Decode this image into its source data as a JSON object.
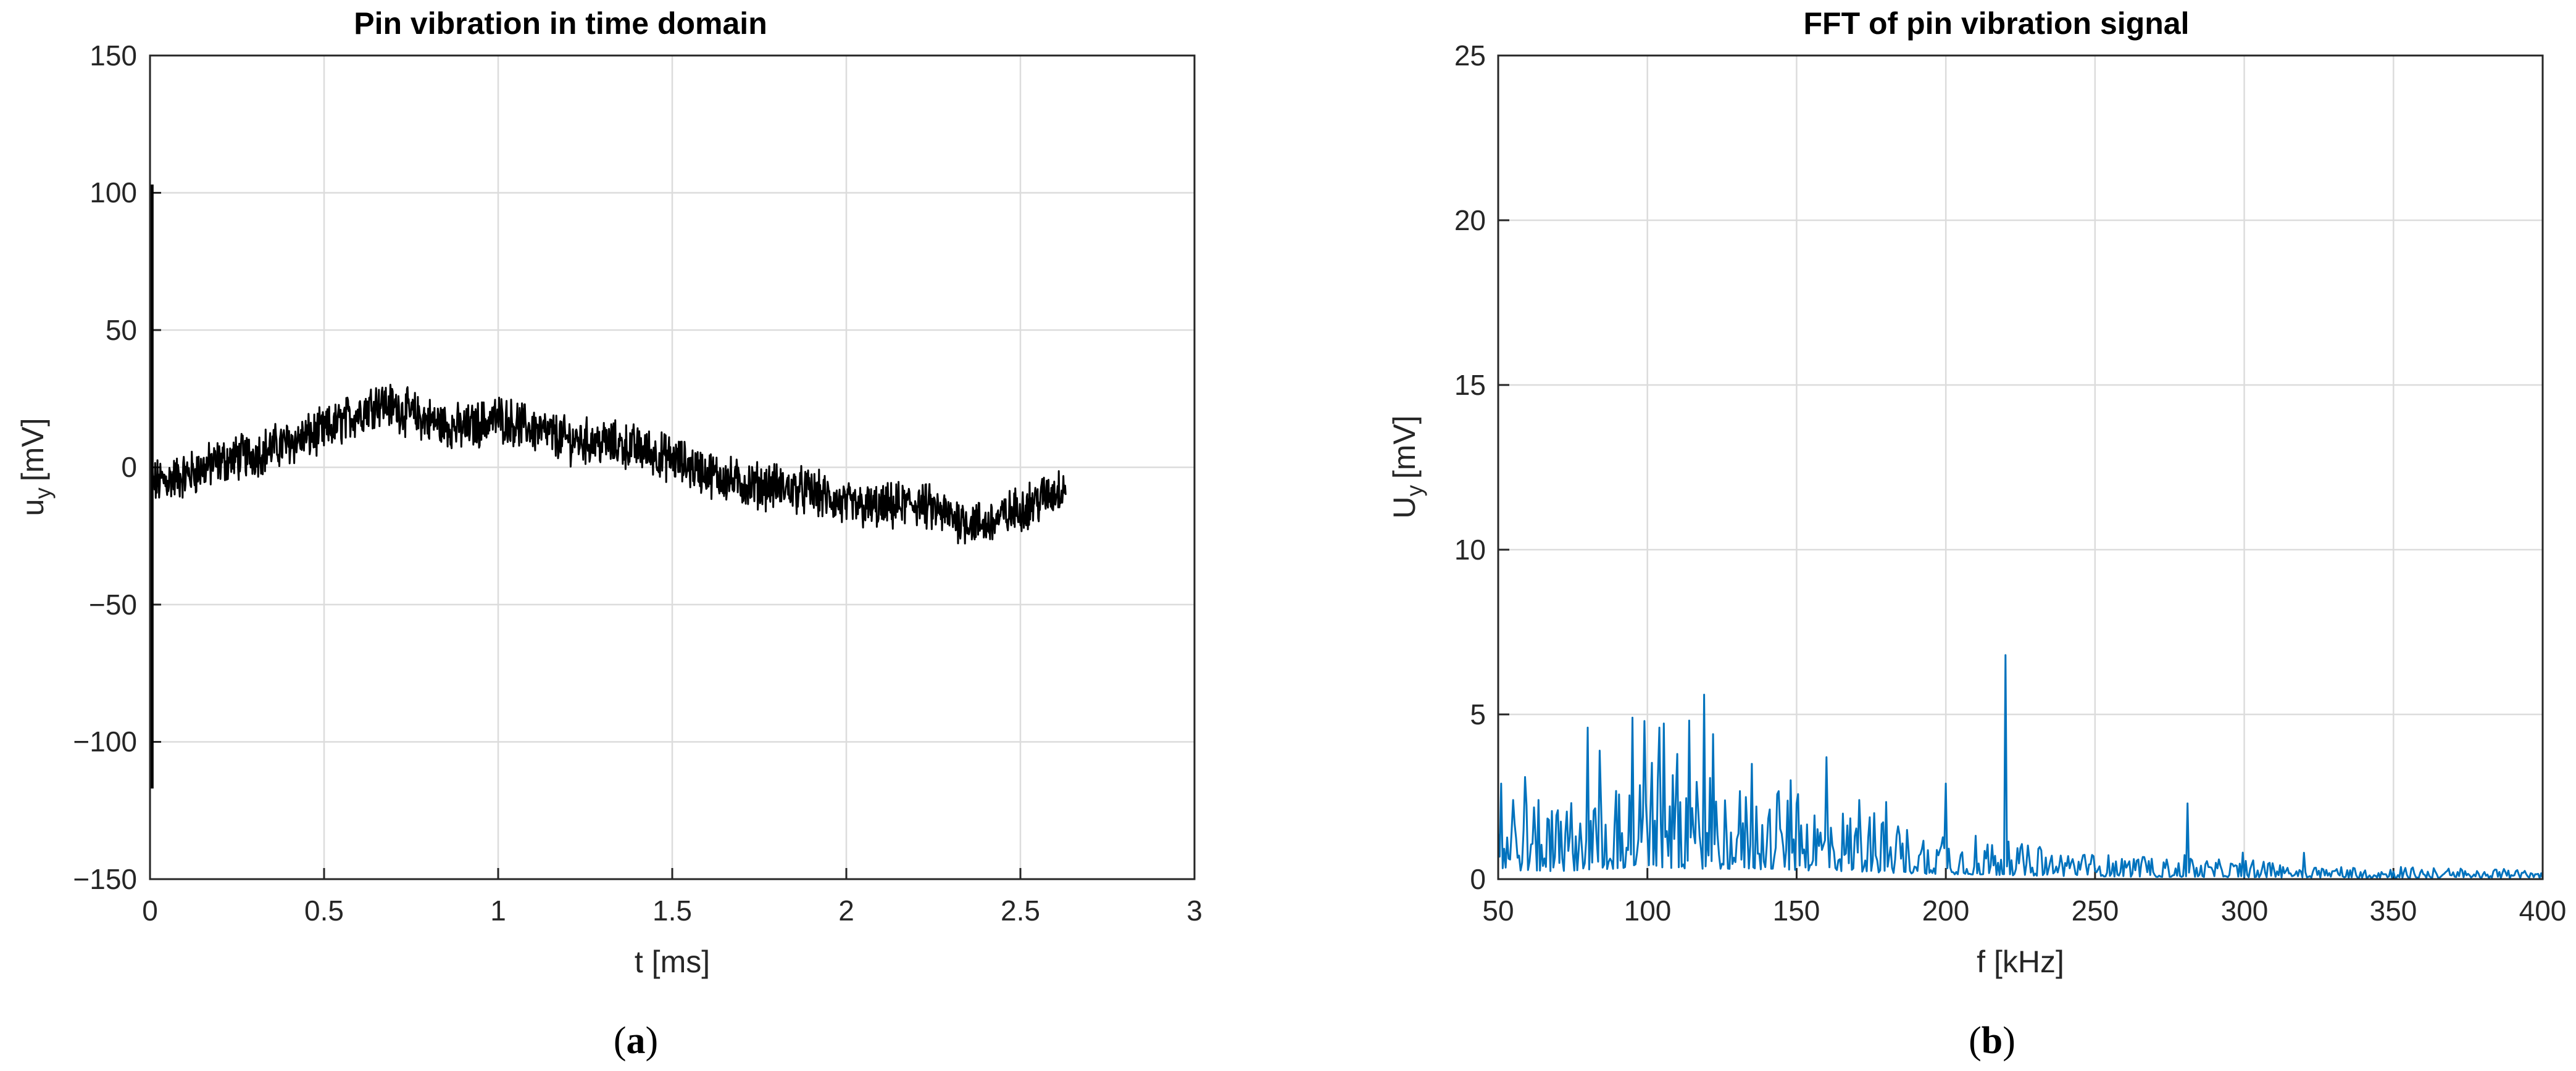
{
  "chart_data": [
    {
      "type": "line",
      "title": "Pin vibration in time domain",
      "xlabel": "t [ms]",
      "ylabel_main": "u",
      "ylabel_sub": "y",
      "ylabel_unit": "[mV]",
      "xlim": [
        0,
        3
      ],
      "ylim": [
        -150,
        150
      ],
      "xticks": [
        "0",
        "0.5",
        "1",
        "1.5",
        "2",
        "2.5",
        "3"
      ],
      "yticks": [
        "150",
        "100",
        "50",
        "0",
        "−50",
        "−100",
        "−150"
      ],
      "grid": true,
      "caption_letter": "a",
      "color": "#000000",
      "series": [
        {
          "trend": [
            [
              0,
              -6
            ],
            [
              0.1,
              -3
            ],
            [
              0.2,
              2
            ],
            [
              0.3,
              5
            ],
            [
              0.4,
              9
            ],
            [
              0.5,
              13
            ],
            [
              0.6,
              20
            ],
            [
              0.65,
              24
            ],
            [
              0.7,
              22
            ],
            [
              0.8,
              17
            ],
            [
              0.9,
              14
            ],
            [
              1.0,
              18
            ],
            [
              1.05,
              16
            ],
            [
              1.1,
              14
            ],
            [
              1.2,
              10
            ],
            [
              1.3,
              9
            ],
            [
              1.4,
              7
            ],
            [
              1.5,
              3
            ],
            [
              1.6,
              -2
            ],
            [
              1.7,
              -6
            ],
            [
              1.8,
              -7
            ],
            [
              1.9,
              -9
            ],
            [
              2.0,
              -14
            ],
            [
              2.1,
              -15
            ],
            [
              2.2,
              -13
            ],
            [
              2.3,
              -18
            ],
            [
              2.4,
              -21
            ],
            [
              2.5,
              -15
            ],
            [
              2.6,
              -9
            ],
            [
              2.63,
              -6
            ]
          ],
          "spike": {
            "x": 0.005,
            "max": 103,
            "min": -117
          },
          "noise_amplitude": 7,
          "end_x": 2.63
        }
      ]
    },
    {
      "type": "line",
      "title": "FFT of pin vibration signal",
      "xlabel": "f [kHz]",
      "ylabel_main": "U",
      "ylabel_sub": "y",
      "ylabel_unit": "[mV]",
      "xlim": [
        50,
        400
      ],
      "ylim": [
        0,
        25
      ],
      "xticks": [
        "50",
        "100",
        "150",
        "200",
        "250",
        "300",
        "350",
        "400"
      ],
      "yticks": [
        "25",
        "20",
        "15",
        "10",
        "5",
        "0"
      ],
      "grid": true,
      "caption_letter": "b",
      "color": "#0072BD",
      "series": [
        {
          "envelope": [
            [
              50,
              1.8
            ],
            [
              70,
              1.6
            ],
            [
              90,
              2.1
            ],
            [
              110,
              2.2
            ],
            [
              130,
              2.0
            ],
            [
              150,
              1.8
            ],
            [
              170,
              1.5
            ],
            [
              190,
              1.1
            ],
            [
              210,
              0.9
            ],
            [
              230,
              0.7
            ],
            [
              250,
              0.55
            ],
            [
              270,
              0.45
            ],
            [
              300,
              0.4
            ],
            [
              330,
              0.3
            ],
            [
              360,
              0.25
            ],
            [
              400,
              0.2
            ]
          ],
          "peaks": [
            [
              51,
              2.9
            ],
            [
              55,
              2.4
            ],
            [
              59,
              3.1
            ],
            [
              80,
              4.6
            ],
            [
              84,
              3.9
            ],
            [
              95,
              4.9
            ],
            [
              99,
              4.8
            ],
            [
              104,
              4.6
            ],
            [
              110,
              3.8
            ],
            [
              119,
              5.6
            ],
            [
              122,
              4.4
            ],
            [
              135,
              3.5
            ],
            [
              148,
              3.0
            ],
            [
              160,
              3.7
            ],
            [
              171,
              2.4
            ],
            [
              200,
              2.9
            ],
            [
              220,
              6.8
            ],
            [
              281,
              2.3
            ],
            [
              320,
              0.8
            ]
          ]
        }
      ]
    }
  ]
}
